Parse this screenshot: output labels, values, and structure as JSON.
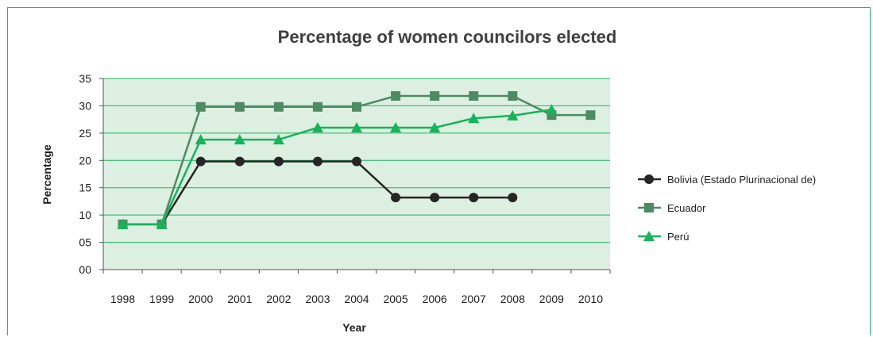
{
  "chart_data": {
    "type": "line",
    "title": "Percentage of women councilors elected",
    "xlabel": "Year",
    "ylabel": "Percentage",
    "categories": [
      "1998",
      "1999",
      "2000",
      "2001",
      "2002",
      "2003",
      "2004",
      "2005",
      "2006",
      "2007",
      "2008",
      "2009",
      "2010"
    ],
    "ytick_labels": [
      "00",
      "05",
      "10",
      "15",
      "20",
      "25",
      "30",
      "35"
    ],
    "ylim": [
      0,
      35
    ],
    "grid": true,
    "legend_position": "right",
    "series": [
      {
        "name": "Bolivia (Estado Plurinacional de)",
        "color": "#262626",
        "marker": "circle",
        "values": [
          8.3,
          8.3,
          19.8,
          19.8,
          19.8,
          19.8,
          19.8,
          13.2,
          13.2,
          13.2,
          13.2,
          null,
          null
        ]
      },
      {
        "name": "Ecuador",
        "color": "#4e8a64",
        "marker": "square",
        "values": [
          8.3,
          8.3,
          29.8,
          29.8,
          29.8,
          29.8,
          29.8,
          31.8,
          31.8,
          31.8,
          31.8,
          28.3,
          28.3
        ]
      },
      {
        "name": "Perú",
        "color": "#16b35b",
        "marker": "triangle",
        "values": [
          8.3,
          8.3,
          23.8,
          23.8,
          23.8,
          26.0,
          26.0,
          26.0,
          26.0,
          27.7,
          28.2,
          29.3,
          null
        ]
      }
    ],
    "colors": {
      "plot_background": "#dcefe1",
      "gridline": "#22b463",
      "frame": "#2bb36b"
    }
  }
}
